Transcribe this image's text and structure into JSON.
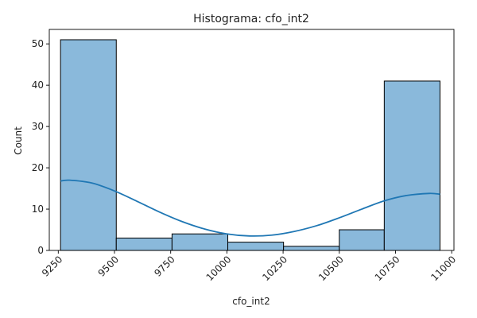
{
  "chart_data": {
    "type": "bar",
    "title": "Histograma: cfo_int2",
    "xlabel": "cfo_int2",
    "ylabel": "Count",
    "xlim": [
      9210,
      11010
    ],
    "ylim": [
      0,
      53.5
    ],
    "x_ticks": [
      9250,
      9500,
      9750,
      10000,
      10250,
      10500,
      10750,
      11000
    ],
    "y_ticks": [
      0,
      10,
      20,
      30,
      40,
      50
    ],
    "bins": [
      {
        "start": 9260,
        "end": 9508,
        "count": 51
      },
      {
        "start": 9508,
        "end": 9756,
        "count": 3
      },
      {
        "start": 9756,
        "end": 10004,
        "count": 4
      },
      {
        "start": 10004,
        "end": 10252,
        "count": 2
      },
      {
        "start": 10252,
        "end": 10500,
        "count": 1
      },
      {
        "start": 10500,
        "end": 10700,
        "count": 5
      },
      {
        "start": 10700,
        "end": 10948,
        "count": 41
      }
    ],
    "kde": {
      "x": [
        9260,
        9300,
        9400,
        9500,
        9600,
        9700,
        9800,
        9900,
        10000,
        10100,
        10200,
        10300,
        10400,
        10500,
        10600,
        10700,
        10800,
        10900,
        10948
      ],
      "y": [
        16.8,
        17.0,
        16.3,
        14.4,
        11.9,
        9.3,
        7.0,
        5.2,
        4.0,
        3.5,
        3.7,
        4.6,
        6.0,
        7.9,
        10.0,
        12.0,
        13.3,
        13.8,
        13.6
      ]
    },
    "colors": {
      "bar_fill": "#8ab9db",
      "bar_edge": "#000000",
      "kde_line": "#1f77b4"
    },
    "grid": false,
    "legend": "none"
  }
}
